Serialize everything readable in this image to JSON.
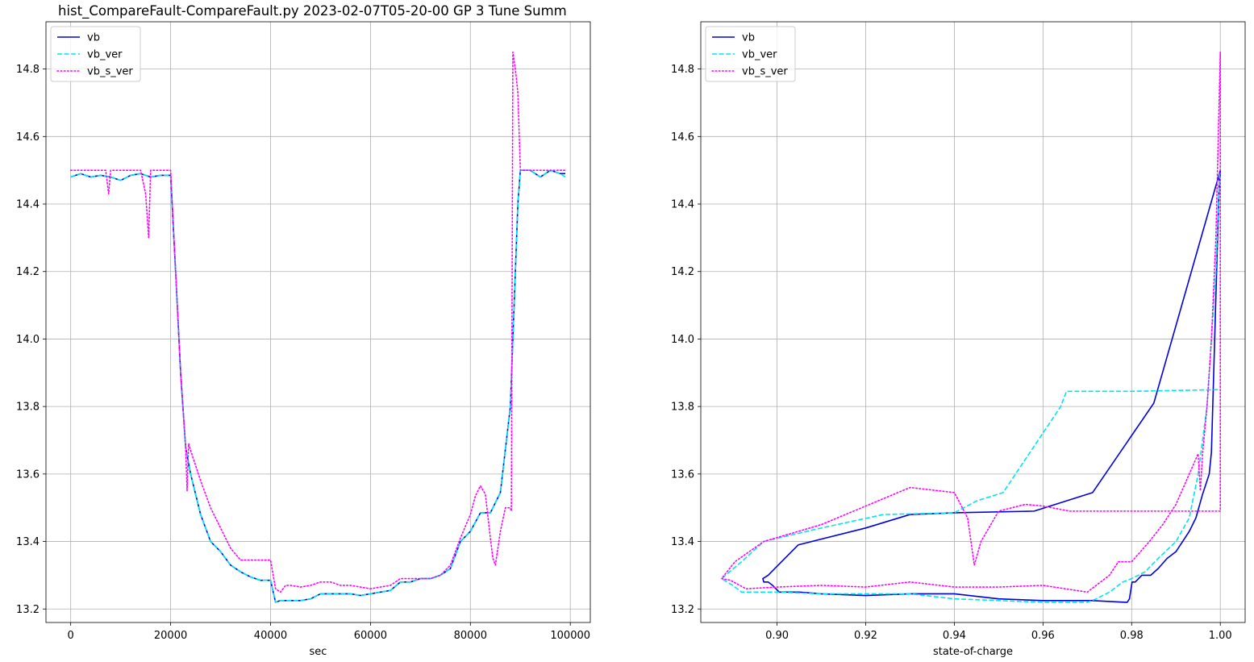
{
  "chart_data": [
    {
      "type": "line",
      "title": "hist_CompareFault-CompareFault.py   2023-02-07T05-20-00 GP 3 Tune Summ",
      "xlabel": "sec",
      "ylabel": "",
      "xlim": [
        -4950,
        104000
      ],
      "ylim": [
        13.16,
        14.94
      ],
      "xticks": [
        0,
        20000,
        40000,
        60000,
        80000,
        100000
      ],
      "yticks": [
        13.2,
        13.4,
        13.6,
        13.8,
        14.0,
        14.2,
        14.4,
        14.6,
        14.8
      ],
      "grid": true,
      "legend_position": "upper left",
      "series": [
        {
          "name": "vb",
          "color": "#0000dd",
          "dash": "solid",
          "x": [
            0,
            2000,
            4000,
            6000,
            8000,
            10000,
            12000,
            14000,
            16000,
            18000,
            20000,
            21000,
            22000,
            23000,
            24000,
            26000,
            28000,
            30000,
            32000,
            34000,
            36000,
            38000,
            40000,
            41000,
            42000,
            44000,
            46000,
            48000,
            50000,
            52000,
            54000,
            56000,
            58000,
            60000,
            62000,
            64000,
            66000,
            68000,
            70000,
            72000,
            74000,
            76000,
            78000,
            80000,
            82000,
            84000,
            86000,
            88000,
            88500,
            89000,
            89500,
            90000,
            92000,
            94000,
            96000,
            98000,
            99000
          ],
          "values": [
            14.48,
            14.49,
            14.48,
            14.485,
            14.48,
            14.47,
            14.485,
            14.49,
            14.48,
            14.485,
            14.485,
            14.2,
            13.9,
            13.68,
            13.6,
            13.48,
            13.4,
            13.37,
            13.33,
            13.31,
            13.295,
            13.285,
            13.285,
            13.22,
            13.225,
            13.225,
            13.225,
            13.23,
            13.245,
            13.245,
            13.245,
            13.245,
            13.24,
            13.245,
            13.25,
            13.255,
            13.28,
            13.28,
            13.29,
            13.29,
            13.3,
            13.32,
            13.4,
            13.43,
            13.485,
            13.485,
            13.545,
            13.8,
            14.0,
            14.2,
            14.4,
            14.5,
            14.5,
            14.48,
            14.5,
            14.49,
            14.49
          ]
        },
        {
          "name": "vb_ver",
          "color": "#00e5ee",
          "dash": "dashed",
          "x": [
            0,
            2000,
            4000,
            6000,
            8000,
            10000,
            12000,
            14000,
            16000,
            18000,
            20000,
            21000,
            22000,
            23000,
            24000,
            26000,
            28000,
            30000,
            32000,
            34000,
            36000,
            38000,
            40000,
            41000,
            42000,
            44000,
            46000,
            48000,
            50000,
            52000,
            54000,
            56000,
            58000,
            60000,
            62000,
            64000,
            66000,
            68000,
            70000,
            72000,
            74000,
            76000,
            78000,
            80000,
            82000,
            84000,
            86000,
            88000,
            88500,
            89000,
            89500,
            90000,
            92000,
            94000,
            96000,
            98000,
            99000
          ],
          "values": [
            14.48,
            14.49,
            14.48,
            14.485,
            14.48,
            14.47,
            14.485,
            14.49,
            14.48,
            14.485,
            14.485,
            14.2,
            13.9,
            13.68,
            13.6,
            13.48,
            13.4,
            13.37,
            13.33,
            13.31,
            13.295,
            13.285,
            13.285,
            13.22,
            13.225,
            13.225,
            13.225,
            13.23,
            13.245,
            13.245,
            13.245,
            13.245,
            13.24,
            13.245,
            13.25,
            13.255,
            13.28,
            13.28,
            13.29,
            13.29,
            13.3,
            13.32,
            13.4,
            13.43,
            13.485,
            13.485,
            13.545,
            13.8,
            14.0,
            14.2,
            14.4,
            14.5,
            14.5,
            14.48,
            14.5,
            14.49,
            14.48
          ]
        },
        {
          "name": "vb_s_ver",
          "color": "#ff00ff",
          "dash": "dotted",
          "x": [
            0,
            2000,
            4000,
            6000,
            7000,
            7600,
            8000,
            10000,
            12000,
            14000,
            15000,
            15600,
            16000,
            17000,
            18000,
            20000,
            21000,
            22000,
            23000,
            23300,
            23600,
            24000,
            26000,
            28000,
            30000,
            32000,
            34000,
            36000,
            38000,
            40000,
            41000,
            42000,
            43000,
            44000,
            46000,
            48000,
            50000,
            52000,
            54000,
            56000,
            58000,
            60000,
            62000,
            64000,
            66000,
            68000,
            70000,
            72000,
            74000,
            76000,
            78000,
            80000,
            81000,
            82000,
            83000,
            84000,
            84500,
            85000,
            86000,
            87000,
            88000,
            88200,
            88500,
            89000,
            89500,
            90000,
            92000,
            94000,
            96000,
            98000,
            99000
          ],
          "values": [
            14.5,
            14.5,
            14.5,
            14.5,
            14.5,
            14.43,
            14.5,
            14.5,
            14.5,
            14.5,
            14.43,
            14.3,
            14.5,
            14.5,
            14.5,
            14.5,
            14.2,
            13.9,
            13.68,
            13.55,
            13.69,
            13.67,
            13.58,
            13.5,
            13.44,
            13.38,
            13.345,
            13.345,
            13.345,
            13.345,
            13.26,
            13.25,
            13.27,
            13.27,
            13.265,
            13.27,
            13.28,
            13.28,
            13.27,
            13.27,
            13.265,
            13.26,
            13.265,
            13.27,
            13.29,
            13.29,
            13.29,
            13.29,
            13.3,
            13.33,
            13.41,
            13.48,
            13.535,
            13.565,
            13.54,
            13.41,
            13.35,
            13.33,
            13.43,
            13.5,
            13.5,
            13.49,
            14.85,
            14.8,
            14.73,
            14.5,
            14.5,
            14.5,
            14.5,
            14.5,
            14.5
          ]
        }
      ]
    },
    {
      "type": "line",
      "title": "",
      "xlabel": "state-of-charge",
      "ylabel": "",
      "xlim": [
        0.8828,
        1.0056
      ],
      "ylim": [
        13.16,
        14.94
      ],
      "xticks": [
        0.9,
        0.92,
        0.94,
        0.96,
        0.98,
        1.0
      ],
      "xtick_labels": [
        "0.90",
        "0.92",
        "0.94",
        "0.96",
        "0.98",
        "1.00"
      ],
      "yticks": [
        13.2,
        13.4,
        13.6,
        13.8,
        14.0,
        14.2,
        14.4,
        14.6,
        14.8
      ],
      "grid": true,
      "legend_position": "upper left",
      "series": [
        {
          "name": "vb",
          "color": "#0000dd",
          "dash": "solid",
          "x": [
            0.9998,
            0.998,
            0.9975,
            0.996,
            0.9945,
            0.993,
            0.9915,
            0.99,
            0.988,
            0.986,
            0.9843,
            0.9823,
            0.9808,
            0.9801,
            0.9795,
            0.979,
            0.9785,
            0.971,
            0.96,
            0.95,
            0.94,
            0.93,
            0.92,
            0.91,
            0.905,
            0.902,
            0.9005,
            0.899,
            0.898,
            0.897,
            0.8968,
            0.898,
            0.8995,
            0.9048,
            0.92,
            0.93,
            0.94,
            0.958,
            0.9712,
            0.985,
            1.0,
            1.0,
            1.0
          ],
          "values": [
            14.49,
            13.665,
            13.6,
            13.54,
            13.47,
            13.43,
            13.4,
            13.37,
            13.35,
            13.32,
            13.3,
            13.3,
            13.28,
            13.28,
            13.23,
            13.22,
            13.22,
            13.225,
            13.225,
            13.23,
            13.245,
            13.245,
            13.24,
            13.245,
            13.25,
            13.25,
            13.25,
            13.27,
            13.28,
            13.28,
            13.29,
            13.3,
            13.32,
            13.39,
            13.44,
            13.48,
            13.485,
            13.49,
            13.545,
            13.81,
            14.5,
            14.48,
            14.48
          ]
        },
        {
          "name": "vb_ver",
          "color": "#00e5ee",
          "dash": "dashed",
          "x": [
            0.9998,
            0.999,
            0.998,
            0.997,
            0.995,
            0.993,
            0.99,
            0.986,
            0.983,
            0.98,
            0.978,
            0.975,
            0.972,
            0.97,
            0.96,
            0.95,
            0.94,
            0.93,
            0.92,
            0.91,
            0.9,
            0.892,
            0.89,
            0.8875,
            0.892,
            0.897,
            0.91,
            0.924,
            0.94,
            0.945,
            0.951,
            0.964,
            0.9653,
            0.98,
            1.0,
            1.0
          ],
          "values": [
            14.49,
            14.2,
            14.0,
            13.8,
            13.6,
            13.47,
            13.4,
            13.35,
            13.31,
            13.29,
            13.28,
            13.25,
            13.23,
            13.22,
            13.22,
            13.225,
            13.23,
            13.245,
            13.245,
            13.245,
            13.25,
            13.25,
            13.27,
            13.29,
            13.34,
            13.4,
            13.44,
            13.48,
            13.485,
            13.52,
            13.545,
            13.8,
            13.845,
            13.845,
            13.85,
            13.85
          ]
        },
        {
          "name": "vb_s_ver",
          "color": "#ff00ff",
          "dash": "dotted",
          "x": [
            1.0,
            0.999,
            0.998,
            0.997,
            0.996,
            0.9955,
            0.995,
            0.993,
            0.99,
            0.987,
            0.984,
            0.98,
            0.977,
            0.975,
            0.97,
            0.96,
            0.95,
            0.94,
            0.93,
            0.92,
            0.91,
            0.9,
            0.893,
            0.8895,
            0.8875,
            0.8905,
            0.897,
            0.91,
            0.92,
            0.93,
            0.94,
            0.943,
            0.9445,
            0.946,
            0.95,
            0.956,
            0.96,
            0.966,
            0.97,
            1.0,
            1.0
          ],
          "values": [
            14.85,
            14.3,
            14.0,
            13.8,
            13.66,
            13.55,
            13.66,
            13.6,
            13.51,
            13.45,
            13.4,
            13.34,
            13.34,
            13.3,
            13.25,
            13.27,
            13.265,
            13.265,
            13.28,
            13.265,
            13.27,
            13.265,
            13.26,
            13.285,
            13.29,
            13.34,
            13.4,
            13.45,
            13.505,
            13.56,
            13.545,
            13.47,
            13.33,
            13.4,
            13.49,
            13.51,
            13.505,
            13.49,
            13.49,
            13.49,
            14.85
          ]
        }
      ]
    }
  ]
}
